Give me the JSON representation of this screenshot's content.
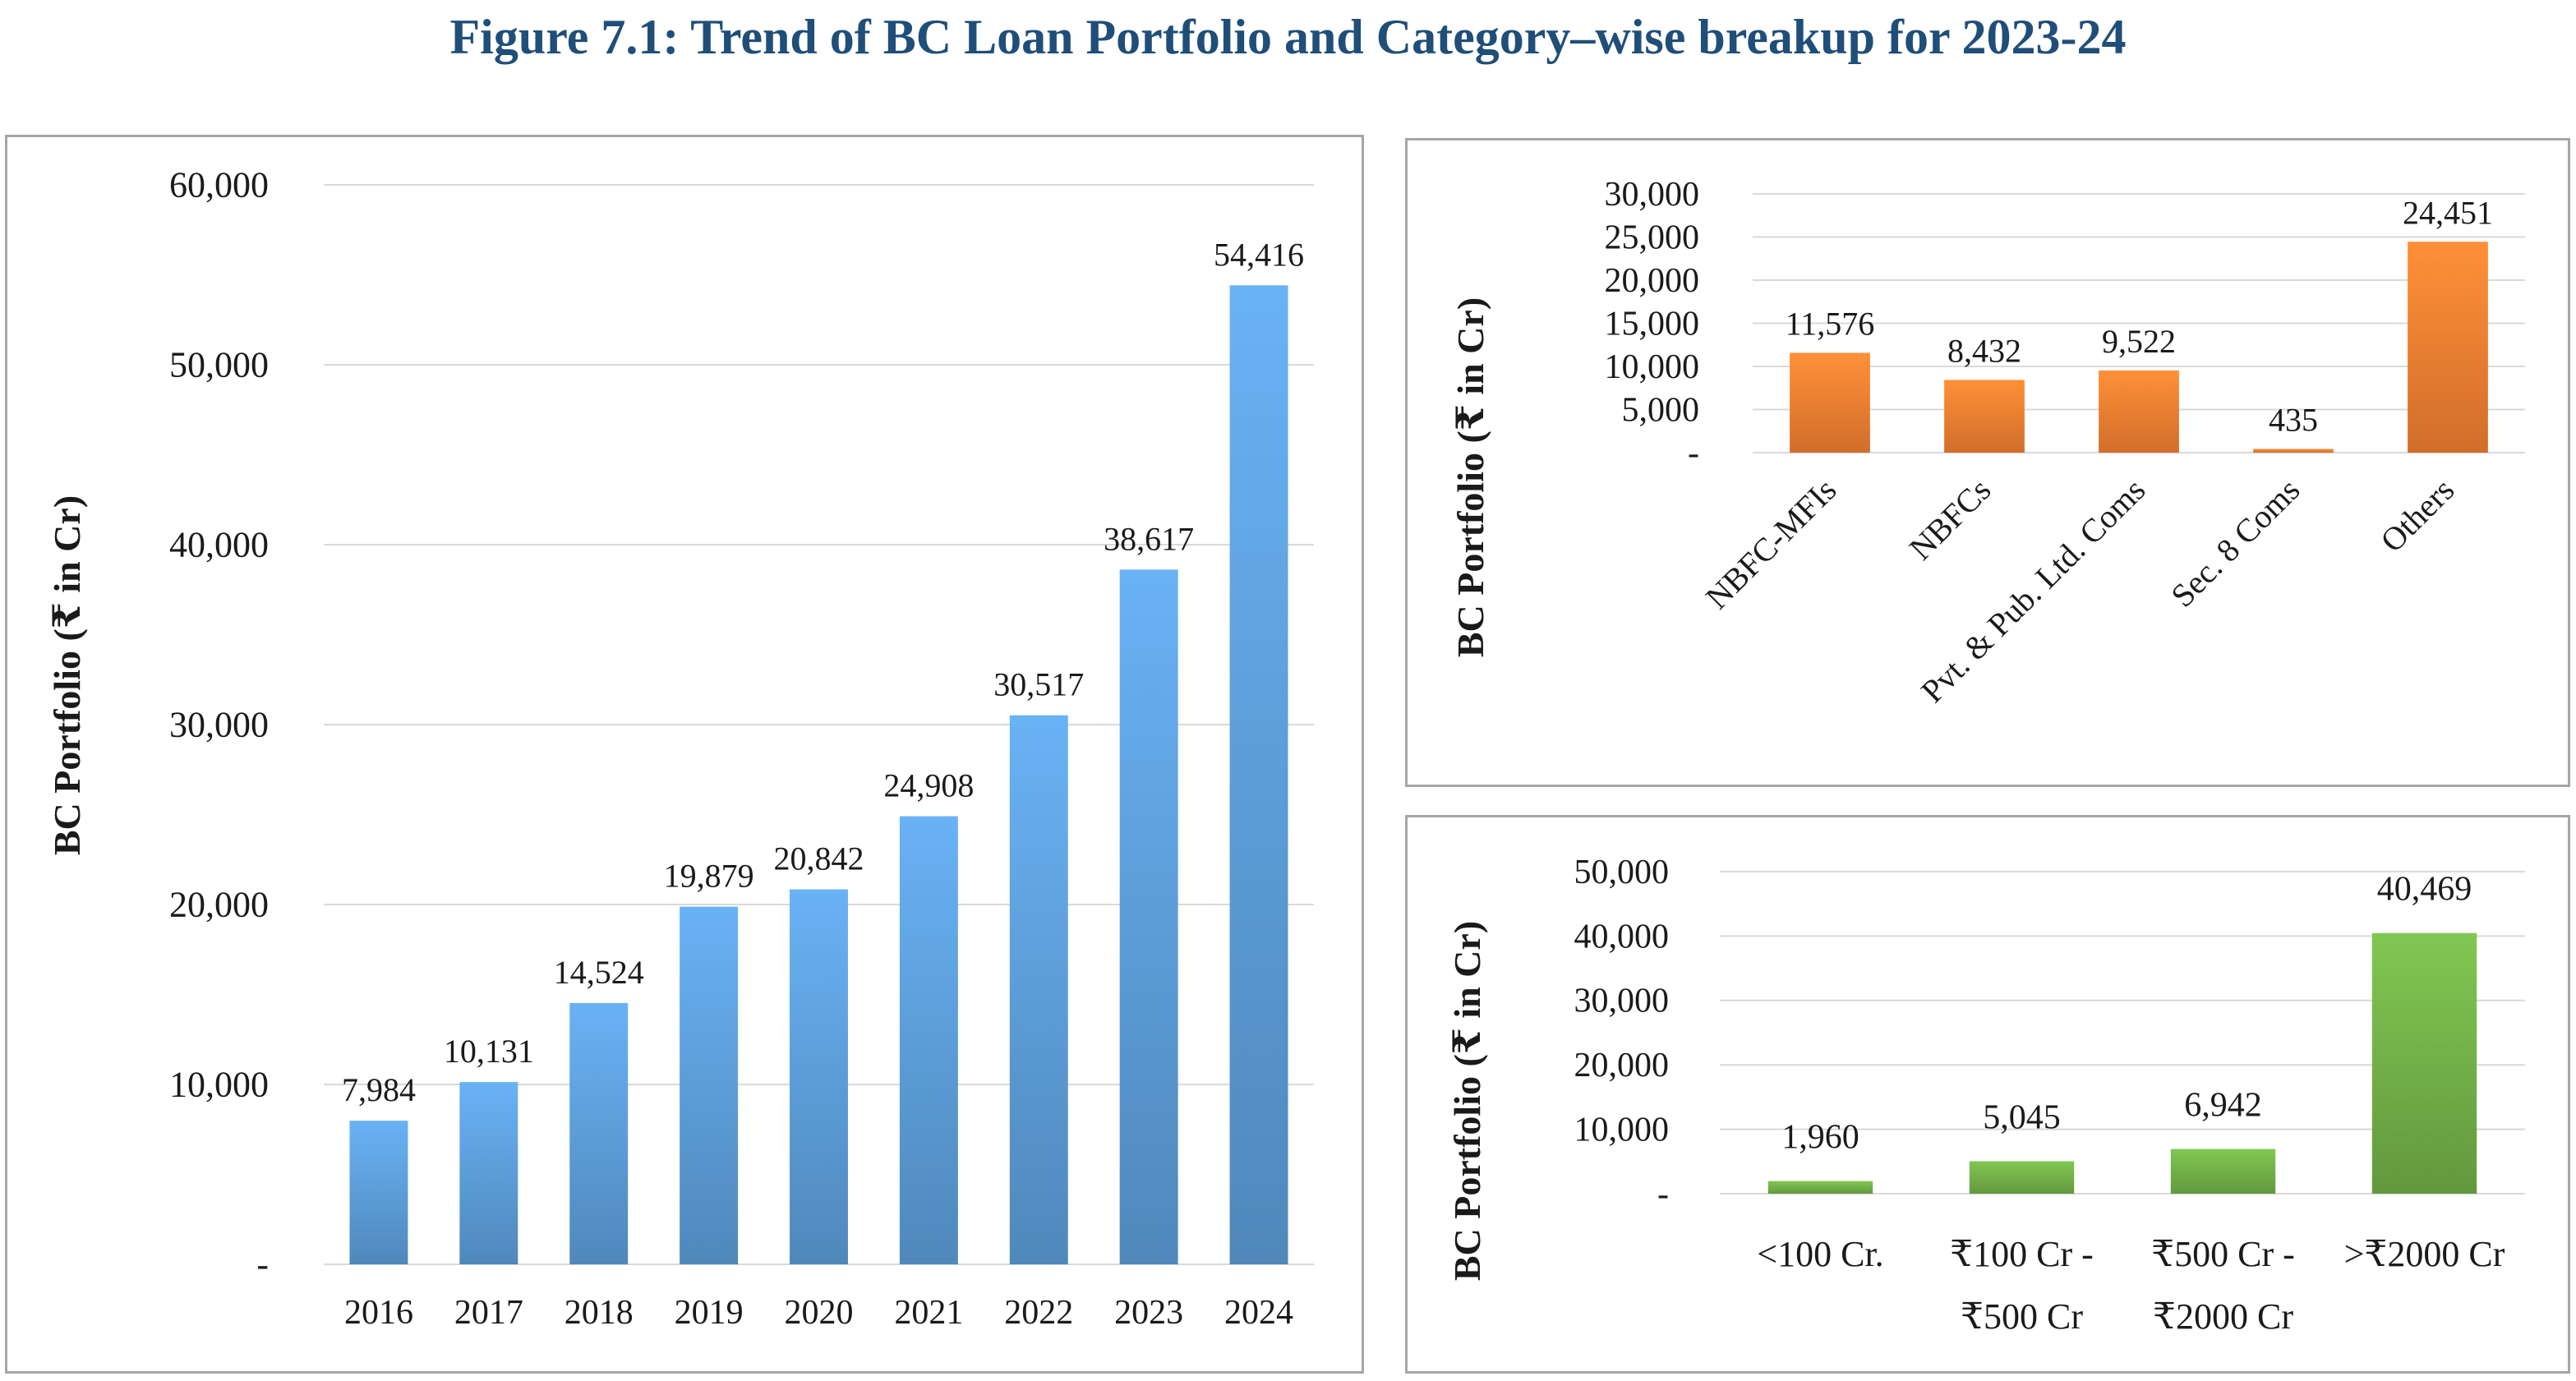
{
  "figure_title": "Figure 7.1: Trend of BC Loan Portfolio and Category–wise breakup for 2023-24",
  "colors": {
    "title": "#1f4e79",
    "blue_bar": "#5b9bd5",
    "orange_bar": "#ed7d31",
    "green_bar": "#70ad47",
    "grid": "#d9d9d9"
  },
  "chart_data": [
    {
      "type": "bar",
      "categories": [
        "2016",
        "2017",
        "2018",
        "2019",
        "2020",
        "2021",
        "2022",
        "2023",
        "2024"
      ],
      "values": [
        7984,
        10131,
        14524,
        19879,
        20842,
        24908,
        30517,
        38617,
        54416
      ],
      "data_labels": [
        "7,984",
        "10,131",
        "14,524",
        "19,879",
        "20,842",
        "24,908",
        "30,517",
        "38,617",
        "54,416"
      ],
      "title": "",
      "xlabel": "",
      "ylabel": "BC Portfolio (₹ in Cr)",
      "ylim": [
        0,
        60000
      ],
      "ytick_values": [
        0,
        10000,
        20000,
        30000,
        40000,
        50000,
        60000
      ],
      "ytick_labels": [
        "-",
        "10,000",
        "20,000",
        "30,000",
        "40,000",
        "50,000",
        "60,000"
      ],
      "grid": true,
      "bar_color": "#5b9bd5"
    },
    {
      "type": "bar",
      "categories": [
        "NBFC-MFIs",
        "NBFCs",
        "Pvt. & Pub. Ltd. Coms",
        "Sec. 8 Coms",
        "Others"
      ],
      "values": [
        11576,
        8432,
        9522,
        435,
        24451
      ],
      "data_labels": [
        "11,576",
        "8,432",
        "9,522",
        "435",
        "24,451"
      ],
      "title": "",
      "xlabel": "",
      "ylabel": "BC Portfolio (₹ in Cr)",
      "ylim": [
        0,
        30000
      ],
      "ytick_values": [
        0,
        5000,
        10000,
        15000,
        20000,
        25000,
        30000
      ],
      "ytick_labels": [
        "-",
        "5,000",
        "10,000",
        "15,000",
        "20,000",
        "25,000",
        "30,000"
      ],
      "grid": true,
      "bar_color": "#ed7d31"
    },
    {
      "type": "bar",
      "categories": [
        "<100 Cr.",
        "₹100 Cr - ₹500 Cr",
        "₹500 Cr - ₹2000 Cr",
        ">₹2000 Cr"
      ],
      "category_lines": [
        [
          "<100 Cr."
        ],
        [
          "₹100 Cr -",
          "₹500 Cr"
        ],
        [
          "₹500 Cr -",
          "₹2000 Cr"
        ],
        [
          ">₹2000 Cr"
        ]
      ],
      "values": [
        1960,
        5045,
        6942,
        40469
      ],
      "data_labels": [
        "1,960",
        "5,045",
        "6,942",
        "40,469"
      ],
      "title": "",
      "xlabel": "",
      "ylabel": "BC Portfolio (₹ in Cr)",
      "ylim": [
        0,
        50000
      ],
      "ytick_values": [
        0,
        10000,
        20000,
        30000,
        40000,
        50000
      ],
      "ytick_labels": [
        "-",
        "10,000",
        "20,000",
        "30,000",
        "40,000",
        "50,000"
      ],
      "grid": true,
      "bar_color": "#70ad47"
    }
  ]
}
